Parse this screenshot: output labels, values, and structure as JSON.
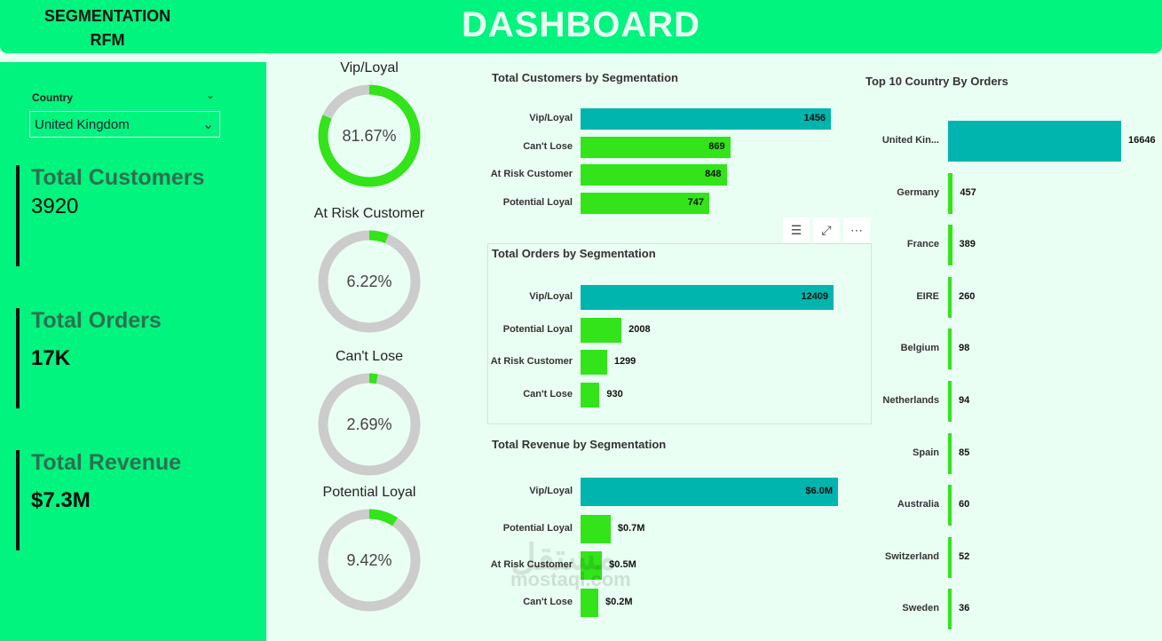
{
  "header": {
    "brand_line1": "SEGMENTATION",
    "brand_line2": "RFM",
    "title": "DASHBOARD"
  },
  "slicer": {
    "label": "Country",
    "value": "United Kingdom"
  },
  "kpis": [
    {
      "label": "Total Customers",
      "value": "3920"
    },
    {
      "label": "Total Orders",
      "value": "17K"
    },
    {
      "label": "Total Revenue",
      "value": "$7.3M"
    }
  ],
  "donuts": [
    {
      "label": "Vip/Loyal",
      "value_text": "81.67%",
      "percent": 81.67
    },
    {
      "label": "At Risk Customer",
      "value_text": "6.22%",
      "percent": 6.22
    },
    {
      "label": "Can't Lose",
      "value_text": "2.69%",
      "percent": 2.69
    },
    {
      "label": "Potential Loyal",
      "value_text": "9.42%",
      "percent": 9.42
    }
  ],
  "colors": {
    "teal": "#00b5ad",
    "green": "#33e41a",
    "ring_bg": "#cccccc",
    "accent": "#00f47e"
  },
  "chart_data": [
    {
      "type": "bar",
      "title": "Total Customers by Segmentation",
      "categories": [
        "Vip/Loyal",
        "Can't Lose",
        "At Risk Customer",
        "Potential Loyal"
      ],
      "values": [
        1456,
        869,
        848,
        747
      ],
      "labels": [
        "1456",
        "869",
        "848",
        "747"
      ]
    },
    {
      "type": "bar",
      "title": "Total Orders by Segmentation",
      "categories": [
        "Vip/Loyal",
        "Potential Loyal",
        "At Risk Customer",
        "Can't Lose"
      ],
      "values": [
        12409,
        2008,
        1299,
        930
      ],
      "labels": [
        "12409",
        "2008",
        "1299",
        "930"
      ]
    },
    {
      "type": "bar",
      "title": "Total Revenue by Segmentation",
      "categories": [
        "Vip/Loyal",
        "Potential Loyal",
        "At Risk Customer",
        "Can't Lose"
      ],
      "values": [
        6.0,
        0.7,
        0.5,
        0.2
      ],
      "labels": [
        "$6.0M",
        "$0.7M",
        "$0.5M",
        "$0.2M"
      ]
    },
    {
      "type": "bar",
      "title": "Top 10 Country By Orders",
      "categories": [
        "United Kin...",
        "Germany",
        "France",
        "EIRE",
        "Belgium",
        "Netherlands",
        "Spain",
        "Australia",
        "Switzerland",
        "Sweden"
      ],
      "values": [
        16646,
        457,
        389,
        260,
        98,
        94,
        85,
        60,
        52,
        36
      ],
      "labels": [
        "16646",
        "457",
        "389",
        "260",
        "98",
        "94",
        "85",
        "60",
        "52",
        "36"
      ]
    }
  ],
  "watermark": {
    "latin": "mostaql.com",
    "arabic": "مستقل"
  }
}
